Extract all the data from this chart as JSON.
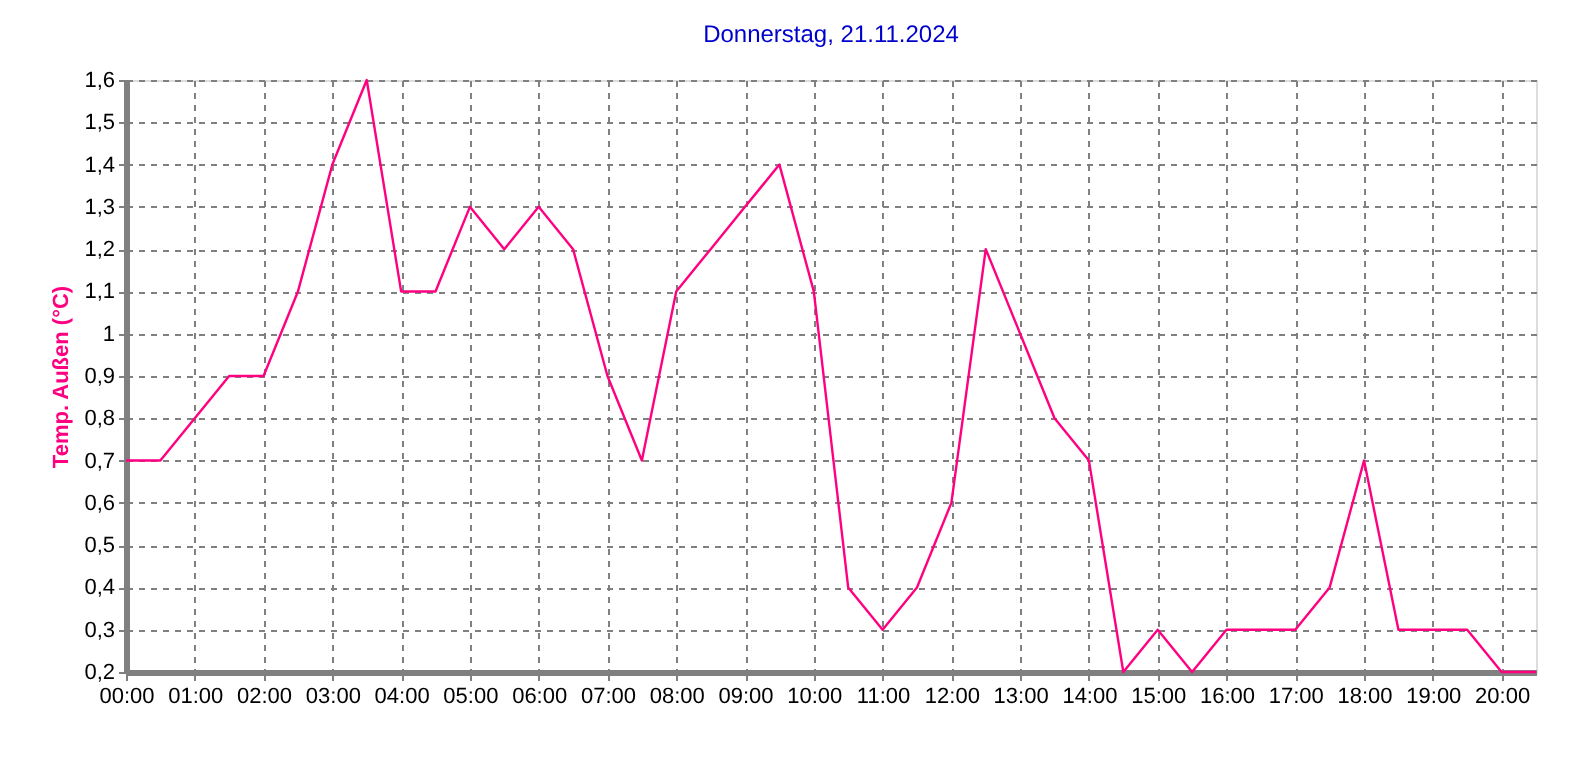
{
  "chart_data": {
    "type": "line",
    "title": "Donnerstag, 21.11.2024",
    "ylabel": "Temp. Außen  (°C)",
    "x": [
      0,
      0.5,
      1,
      1.5,
      2,
      2.5,
      3,
      3.5,
      4,
      4.5,
      5,
      5.5,
      6,
      6.5,
      7,
      7.5,
      8,
      8.5,
      9,
      9.5,
      10,
      10.5,
      11,
      11.5,
      12,
      12.5,
      13,
      13.5,
      14,
      14.5,
      15,
      15.5,
      16,
      16.5,
      17,
      17.5,
      18,
      18.5,
      19,
      19.5,
      20,
      20.5
    ],
    "series": [
      {
        "color": "#ff0080",
        "values": [
          0.7,
          0.7,
          0.8,
          0.9,
          0.9,
          1.1,
          1.4,
          1.6,
          1.1,
          1.1,
          1.3,
          1.2,
          1.3,
          1.2,
          0.9,
          0.7,
          1.1,
          1.2,
          1.3,
          1.4,
          1.1,
          0.4,
          0.3,
          0.4,
          0.6,
          1.2,
          1.0,
          0.8,
          0.7,
          0.2,
          0.3,
          0.2,
          0.3,
          0.3,
          0.3,
          0.4,
          0.7,
          0.3,
          0.3,
          0.3,
          0.2,
          0.2
        ]
      }
    ],
    "xlim": [
      0,
      20.5
    ],
    "xticks": [
      {
        "value": 0,
        "label": "00:00"
      },
      {
        "value": 1,
        "label": "01:00"
      },
      {
        "value": 2,
        "label": "02:00"
      },
      {
        "value": 3,
        "label": "03:00"
      },
      {
        "value": 4,
        "label": "04:00"
      },
      {
        "value": 5,
        "label": "05:00"
      },
      {
        "value": 6,
        "label": "06:00"
      },
      {
        "value": 7,
        "label": "07:00"
      },
      {
        "value": 8,
        "label": "08:00"
      },
      {
        "value": 9,
        "label": "09:00"
      },
      {
        "value": 10,
        "label": "10:00"
      },
      {
        "value": 11,
        "label": "11:00"
      },
      {
        "value": 12,
        "label": "12:00"
      },
      {
        "value": 13,
        "label": "13:00"
      },
      {
        "value": 14,
        "label": "14:00"
      },
      {
        "value": 15,
        "label": "15:00"
      },
      {
        "value": 16,
        "label": "16:00"
      },
      {
        "value": 17,
        "label": "17:00"
      },
      {
        "value": 18,
        "label": "18:00"
      },
      {
        "value": 19,
        "label": "19:00"
      },
      {
        "value": 20,
        "label": "20:00"
      }
    ],
    "ylim": [
      0.2,
      1.6
    ],
    "yticks": [
      {
        "value": 0.2,
        "label": "0,2"
      },
      {
        "value": 0.3,
        "label": "0,3"
      },
      {
        "value": 0.4,
        "label": "0,4"
      },
      {
        "value": 0.5,
        "label": "0,5"
      },
      {
        "value": 0.6,
        "label": "0,6"
      },
      {
        "value": 0.7,
        "label": "0,7"
      },
      {
        "value": 0.8,
        "label": "0,8"
      },
      {
        "value": 0.9,
        "label": "0,9"
      },
      1,
      {
        "value": 1.1,
        "label": "1,1"
      },
      {
        "value": 1.2,
        "label": "1,2"
      },
      {
        "value": 1.3,
        "label": "1,3"
      },
      {
        "value": 1.4,
        "label": "1,4"
      },
      {
        "value": 1.5,
        "label": "1,5"
      },
      {
        "value": 1.6,
        "label": "1,6"
      }
    ],
    "grid": true,
    "marker": "none",
    "line_style": "solid"
  }
}
